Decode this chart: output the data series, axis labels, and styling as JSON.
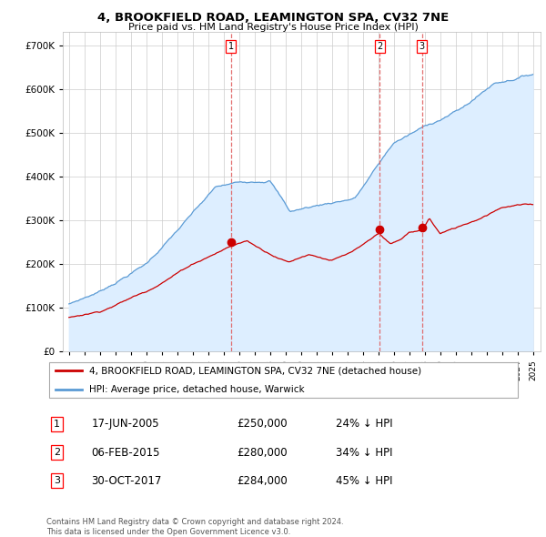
{
  "title": "4, BROOKFIELD ROAD, LEAMINGTON SPA, CV32 7NE",
  "subtitle": "Price paid vs. HM Land Registry's House Price Index (HPI)",
  "ylim": [
    0,
    730000
  ],
  "yticks": [
    0,
    100000,
    200000,
    300000,
    400000,
    500000,
    600000,
    700000
  ],
  "sale_prices": [
    250000,
    280000,
    284000
  ],
  "legend_line1": "4, BROOKFIELD ROAD, LEAMINGTON SPA, CV32 7NE (detached house)",
  "legend_line2": "HPI: Average price, detached house, Warwick",
  "table_rows": [
    [
      "1",
      "17-JUN-2005",
      "£250,000",
      "24% ↓ HPI"
    ],
    [
      "2",
      "06-FEB-2015",
      "£280,000",
      "34% ↓ HPI"
    ],
    [
      "3",
      "30-OCT-2017",
      "£284,000",
      "45% ↓ HPI"
    ]
  ],
  "footnote": "Contains HM Land Registry data © Crown copyright and database right 2024.\nThis data is licensed under the Open Government Licence v3.0.",
  "hpi_color": "#5b9bd5",
  "hpi_fill_color": "#ddeeff",
  "sale_color": "#cc0000",
  "vline_color": "#e06060",
  "grid_color": "#cccccc",
  "background_color": "#ffffff"
}
